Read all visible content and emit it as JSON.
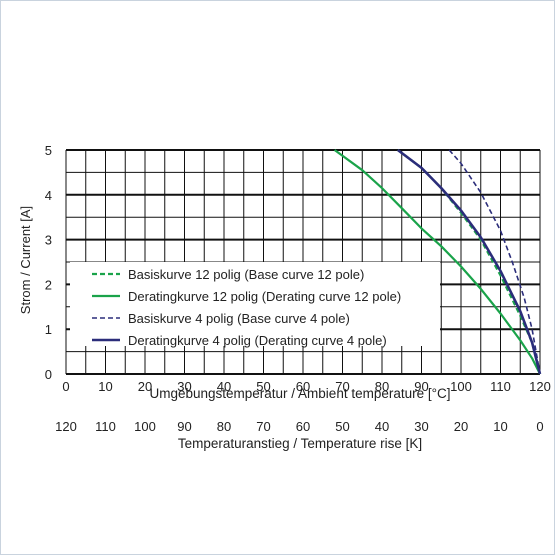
{
  "chart_data": {
    "type": "line",
    "xlabel": "Umgebungstemperatur / Ambient temperature [°C]",
    "ylabel": "Strom / Current [A]",
    "secondary_xlabel": "Temperaturanstieg / Temperature rise [K]",
    "xlim": [
      0,
      120
    ],
    "ylim": [
      0,
      5
    ],
    "x_ticks": [
      "0",
      "10",
      "20",
      "30",
      "40",
      "50",
      "60",
      "70",
      "80",
      "90",
      "100",
      "110",
      "120"
    ],
    "secondary_x_ticks": [
      "120",
      "110",
      "100",
      "90",
      "80",
      "70",
      "60",
      "50",
      "40",
      "30",
      "20",
      "10",
      "0"
    ],
    "y_ticks": [
      "0",
      "1",
      "2",
      "3",
      "4",
      "5"
    ],
    "grid": true,
    "legend_position": "bottom-left",
    "series": [
      {
        "name": "Basiskurve 12 polig (Base curve 12 pole)",
        "color": "#1aa34a",
        "dash": true,
        "x": [
          84,
          90,
          95,
          100,
          105,
          110,
          115,
          118,
          120
        ],
        "y": [
          5,
          4.6,
          4.15,
          3.6,
          3.0,
          2.2,
          1.3,
          0.7,
          0
        ]
      },
      {
        "name": "Deratingkurve 12 polig (Derating curve 12 pole)",
        "color": "#1aa34a",
        "dash": false,
        "x": [
          68,
          75,
          80,
          85,
          90,
          95,
          100,
          105,
          110,
          115,
          118,
          120
        ],
        "y": [
          5,
          4.55,
          4.15,
          3.7,
          3.25,
          2.85,
          2.4,
          1.9,
          1.35,
          0.75,
          0.35,
          0
        ]
      },
      {
        "name": "Basiskurve 4 polig (Base curve 4 pole)",
        "color": "#2b2d7a",
        "dash": true,
        "x": [
          97,
          100,
          105,
          110,
          113,
          116,
          118,
          120
        ],
        "y": [
          5,
          4.7,
          4.05,
          3.2,
          2.5,
          1.7,
          1.0,
          0
        ]
      },
      {
        "name": "Deratingkurve 4 polig (Derating curve 4 pole)",
        "color": "#2b2d7a",
        "dash": false,
        "x": [
          84,
          90,
          95,
          100,
          105,
          110,
          115,
          118,
          120
        ],
        "y": [
          5,
          4.6,
          4.15,
          3.65,
          3.05,
          2.3,
          1.4,
          0.7,
          0
        ]
      }
    ]
  }
}
